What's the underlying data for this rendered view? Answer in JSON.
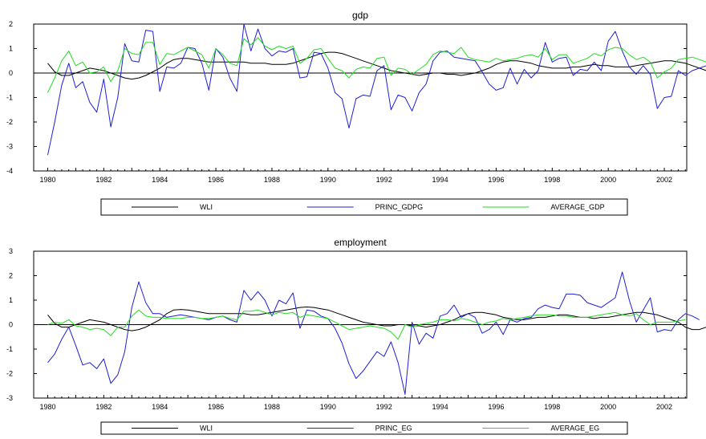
{
  "chart_data": [
    {
      "type": "line",
      "title": "gdp",
      "xlabel": "",
      "ylabel": "",
      "xlim": [
        1979.5,
        2002.8
      ],
      "ylim": [
        -4,
        2
      ],
      "yticks": [
        -4,
        -3,
        -2,
        -1,
        0,
        1,
        2
      ],
      "xticks": [
        1980,
        1982,
        1984,
        1986,
        1988,
        1990,
        1992,
        1994,
        1996,
        1998,
        2000,
        2002
      ],
      "grid": false,
      "legend": "bottom",
      "x_start": 1980,
      "x_step": 0.25,
      "series": [
        {
          "name": "WLI",
          "color": "#000000",
          "values": [
            0.4,
            0.05,
            -0.1,
            -0.1,
            0.0,
            0.1,
            0.2,
            0.15,
            0.1,
            0.0,
            -0.1,
            -0.2,
            -0.25,
            -0.2,
            -0.1,
            0.05,
            0.2,
            0.4,
            0.55,
            0.6,
            0.6,
            0.55,
            0.5,
            0.45,
            0.45,
            0.45,
            0.45,
            0.45,
            0.45,
            0.4,
            0.4,
            0.4,
            0.35,
            0.35,
            0.35,
            0.4,
            0.5,
            0.6,
            0.7,
            0.8,
            0.85,
            0.85,
            0.8,
            0.7,
            0.6,
            0.5,
            0.4,
            0.3,
            0.2,
            0.1,
            0.05,
            0.0,
            -0.05,
            -0.1,
            -0.05,
            0.0,
            0.0,
            -0.05,
            -0.05,
            -0.1,
            -0.05,
            0.0,
            0.1,
            0.2,
            0.35,
            0.45,
            0.5,
            0.5,
            0.45,
            0.4,
            0.3,
            0.25,
            0.2,
            0.2,
            0.2,
            0.25,
            0.25,
            0.3,
            0.35,
            0.3,
            0.3,
            0.25,
            0.25,
            0.25,
            0.3,
            0.35,
            0.4,
            0.45,
            0.5,
            0.5,
            0.45,
            0.4,
            0.3,
            0.2,
            0.1,
            0.0,
            -0.1,
            -0.15,
            -0.15,
            0.0
          ]
        },
        {
          "name": "PRINC_GDPG",
          "color": "#1f1fd6",
          "values": [
            -3.35,
            -2.0,
            -0.5,
            0.4,
            -0.6,
            -0.35,
            -1.2,
            -1.6,
            -0.25,
            -2.2,
            -1.0,
            1.2,
            0.5,
            0.45,
            1.75,
            1.7,
            -0.75,
            0.25,
            0.2,
            0.4,
            1.05,
            1.0,
            0.4,
            -0.7,
            1.0,
            0.65,
            -0.2,
            -0.75,
            2.0,
            0.9,
            1.8,
            1.0,
            0.7,
            0.9,
            0.85,
            1.0,
            -0.2,
            -0.15,
            0.85,
            0.8,
            0.2,
            -0.8,
            -1.05,
            -2.25,
            -1.05,
            -0.9,
            -0.95,
            0.1,
            0.3,
            -1.5,
            -0.9,
            -1.0,
            -1.55,
            -0.8,
            -0.45,
            0.5,
            0.85,
            0.9,
            0.65,
            0.6,
            0.55,
            0.5,
            0.05,
            -0.45,
            -0.7,
            -0.6,
            0.2,
            -0.45,
            0.15,
            -0.2,
            0.1,
            1.25,
            0.45,
            0.6,
            0.65,
            -0.1,
            0.15,
            0.1,
            0.45,
            0.1,
            1.3,
            1.7,
            0.9,
            0.25,
            -0.05,
            0.3,
            -0.05,
            -1.45,
            -1.0,
            -0.95,
            0.1,
            -0.1,
            0.1,
            0.2,
            0.3,
            0.2,
            0.1,
            -0.2,
            0.1,
            0.15
          ]
        },
        {
          "name": "AVERAGE_GDP",
          "color": "#22dd22",
          "values": [
            -0.8,
            -0.2,
            0.5,
            0.9,
            0.3,
            0.45,
            0.0,
            0.05,
            0.25,
            -0.35,
            0.1,
            1.0,
            0.8,
            0.75,
            1.25,
            1.25,
            0.35,
            0.8,
            0.75,
            0.9,
            1.05,
            0.9,
            0.75,
            0.2,
            1.0,
            0.75,
            0.4,
            0.3,
            1.4,
            1.15,
            1.45,
            1.1,
            0.95,
            1.1,
            1.0,
            1.1,
            0.4,
            0.6,
            0.95,
            1.0,
            0.6,
            0.2,
            0.1,
            -0.2,
            0.15,
            0.25,
            0.2,
            0.6,
            0.65,
            -0.1,
            0.2,
            0.15,
            -0.05,
            0.15,
            0.35,
            0.75,
            0.9,
            0.85,
            0.8,
            1.05,
            0.65,
            0.55,
            0.5,
            0.45,
            0.6,
            0.5,
            0.55,
            0.6,
            0.7,
            0.75,
            0.65,
            1.0,
            0.55,
            0.75,
            0.75,
            0.4,
            0.5,
            0.6,
            0.8,
            0.7,
            0.95,
            1.05,
            1.0,
            0.75,
            0.55,
            0.65,
            0.45,
            -0.2,
            0.05,
            0.2,
            0.55,
            0.6,
            0.65,
            0.55,
            0.45,
            0.5,
            0.55,
            0.4,
            0.6,
            0.7
          ]
        }
      ]
    },
    {
      "type": "line",
      "title": "employment",
      "xlabel": "",
      "ylabel": "",
      "xlim": [
        1979.5,
        2002.8
      ],
      "ylim": [
        -3,
        3
      ],
      "yticks": [
        -3,
        -2,
        -1,
        0,
        1,
        2,
        3
      ],
      "xticks": [
        1980,
        1982,
        1984,
        1986,
        1988,
        1990,
        1992,
        1994,
        1996,
        1998,
        2000,
        2002
      ],
      "grid": false,
      "legend": "bottom",
      "x_start": 1980,
      "x_step": 0.25,
      "series": [
        {
          "name": "WLI",
          "color": "#000000",
          "values": [
            0.4,
            0.05,
            -0.1,
            -0.1,
            0.0,
            0.1,
            0.2,
            0.15,
            0.1,
            0.0,
            -0.1,
            -0.2,
            -0.25,
            -0.2,
            -0.1,
            0.05,
            0.2,
            0.45,
            0.6,
            0.62,
            0.6,
            0.55,
            0.5,
            0.45,
            0.45,
            0.45,
            0.45,
            0.45,
            0.45,
            0.4,
            0.4,
            0.45,
            0.5,
            0.55,
            0.6,
            0.65,
            0.7,
            0.72,
            0.7,
            0.65,
            0.6,
            0.5,
            0.4,
            0.3,
            0.2,
            0.1,
            0.05,
            0.0,
            -0.05,
            -0.05,
            0.0,
            0.0,
            -0.05,
            -0.05,
            -0.1,
            -0.05,
            0.0,
            0.1,
            0.2,
            0.35,
            0.45,
            0.5,
            0.5,
            0.45,
            0.4,
            0.3,
            0.25,
            0.2,
            0.2,
            0.25,
            0.3,
            0.3,
            0.35,
            0.4,
            0.4,
            0.35,
            0.3,
            0.3,
            0.25,
            0.3,
            0.3,
            0.35,
            0.4,
            0.45,
            0.5,
            0.5,
            0.45,
            0.4,
            0.3,
            0.2,
            0.1,
            -0.1,
            -0.2,
            -0.2,
            -0.1,
            0.0
          ]
        },
        {
          "name": "PRINC_EG",
          "color": "#1f1fd6",
          "values": [
            -1.55,
            -1.2,
            -0.6,
            -0.1,
            -0.85,
            -1.65,
            -1.55,
            -1.8,
            -1.4,
            -2.4,
            -2.05,
            -1.1,
            0.7,
            1.75,
            0.9,
            0.45,
            0.45,
            0.3,
            0.35,
            0.4,
            0.35,
            0.3,
            0.25,
            0.2,
            0.3,
            0.35,
            0.2,
            0.1,
            1.4,
            1.0,
            1.35,
            1.0,
            0.35,
            1.0,
            0.85,
            1.3,
            -0.15,
            0.6,
            0.55,
            0.35,
            0.25,
            -0.15,
            -0.75,
            -1.6,
            -2.2,
            -1.9,
            -1.5,
            -1.1,
            -1.3,
            -0.7,
            -1.55,
            -2.85,
            0.1,
            -0.8,
            -0.35,
            -0.55,
            0.35,
            0.45,
            0.8,
            0.3,
            0.45,
            0.3,
            -0.35,
            -0.2,
            0.1,
            -0.4,
            0.2,
            0.1,
            0.25,
            0.3,
            0.65,
            0.8,
            0.7,
            0.65,
            1.25,
            1.25,
            1.2,
            0.9,
            0.8,
            0.7,
            0.9,
            1.1,
            2.15,
            1.0,
            0.1,
            0.6,
            1.1,
            -0.3,
            -0.2,
            -0.25,
            0.2,
            0.45,
            0.35,
            0.2
          ]
        },
        {
          "name": "AVERAGE_EG",
          "color": "#22dd22",
          "values": [
            0.0,
            0.1,
            0.05,
            0.2,
            -0.05,
            -0.1,
            -0.2,
            -0.15,
            -0.2,
            -0.45,
            -0.1,
            -0.1,
            0.35,
            0.6,
            0.35,
            0.3,
            0.3,
            0.25,
            0.25,
            0.25,
            0.3,
            0.3,
            0.25,
            0.25,
            0.3,
            0.35,
            0.25,
            0.2,
            0.55,
            0.55,
            0.6,
            0.5,
            0.4,
            0.5,
            0.45,
            0.5,
            0.3,
            0.4,
            0.35,
            0.3,
            0.25,
            0.1,
            -0.05,
            -0.2,
            -0.15,
            -0.1,
            -0.05,
            -0.1,
            -0.15,
            -0.3,
            -0.6,
            0.0,
            -0.1,
            0.0,
            0.05,
            0.1,
            0.2,
            0.2,
            0.15,
            0.25,
            0.2,
            0.1,
            0.0,
            0.1,
            0.15,
            0.25,
            0.2,
            0.25,
            0.3,
            0.35,
            0.4,
            0.4,
            0.4,
            0.35,
            0.35,
            0.3,
            0.3,
            0.3,
            0.35,
            0.4,
            0.45,
            0.5,
            0.4,
            0.35,
            0.45,
            0.2,
            0.0,
            0.1,
            0.1,
            0.1,
            0.15,
            0.2
          ]
        }
      ]
    }
  ]
}
